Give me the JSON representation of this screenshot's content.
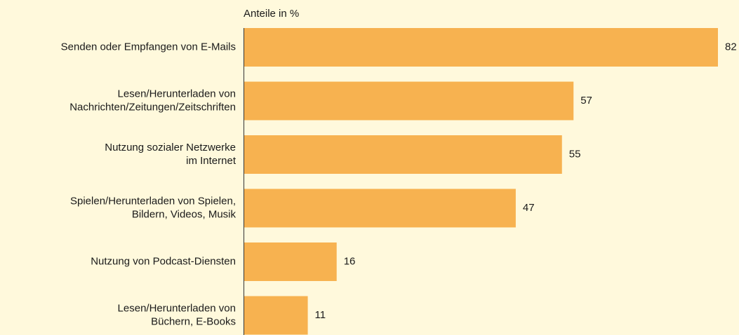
{
  "chart_data": {
    "type": "bar",
    "orientation": "horizontal",
    "axis_label": "Anteile in %",
    "categories": [
      [
        "Senden oder Empfangen von E-Mails"
      ],
      [
        "Lesen/Herunterladen von",
        "Nachrichten/Zeitungen/Zeitschriften"
      ],
      [
        "Nutzung sozialer Netzwerke",
        "im Internet"
      ],
      [
        "Spielen/Herunterladen von Spielen,",
        "Bildern, Videos, Musik"
      ],
      [
        "Nutzung von Podcast-Diensten"
      ],
      [
        "Lesen/Herunterladen von",
        "Büchern, E-Books"
      ]
    ],
    "values": [
      82,
      57,
      55,
      47,
      16,
      11
    ],
    "color": "#f7b250"
  }
}
